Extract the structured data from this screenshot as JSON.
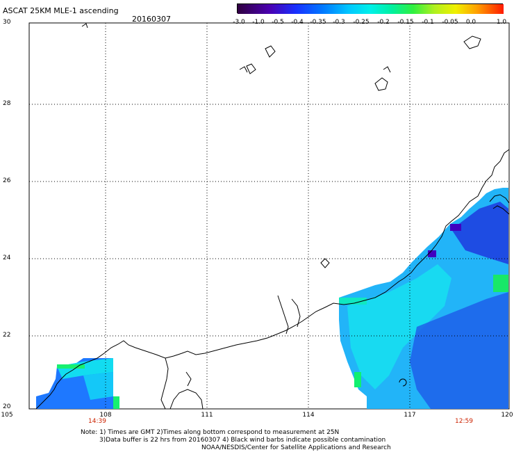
{
  "header": {
    "title": "ASCAT 25KM MLE-1 ascending",
    "date": "20160307"
  },
  "colorbar": {
    "labels": [
      "-3.0",
      "-1.0",
      "-0.5",
      "-0.4",
      "-0.35",
      "-0.3",
      "-0.25",
      "-0.2",
      "-0.15",
      "-0.1",
      "-0.05",
      "0.0",
      "1.0"
    ],
    "colors": [
      "#3a0050",
      "#4a00a8",
      "#1e3cff",
      "#0070ff",
      "#00a8ff",
      "#00dcf0",
      "#00f0c8",
      "#30f060",
      "#a8f020",
      "#f0f000",
      "#ffb000",
      "#ff6000",
      "#ff1a00"
    ]
  },
  "axes": {
    "lat_labels": [
      "30",
      "28",
      "26",
      "24",
      "22",
      "20"
    ],
    "lon_labels": [
      "105",
      "108",
      "111",
      "114",
      "117",
      "120"
    ]
  },
  "pass_times": {
    "left": "14:39",
    "right": "12:59"
  },
  "notes": {
    "line1": "Note: 1) Times are GMT 2)Times along bottom correspond to measurement at 25N",
    "line2": "3)Data buffer is 22 hrs from 20160307 4) Black wind barbs indicate possible contamination",
    "line3": "NOAA/NESDIS/Center for Satellite Applications and Research"
  },
  "colors": {
    "data_blue": "#1464ff",
    "data_cyan": "#14e6f0",
    "data_deep": "#1e28e6",
    "data_purple": "#4000c0",
    "data_green": "#10f070",
    "time_red": "#cc2200"
  }
}
